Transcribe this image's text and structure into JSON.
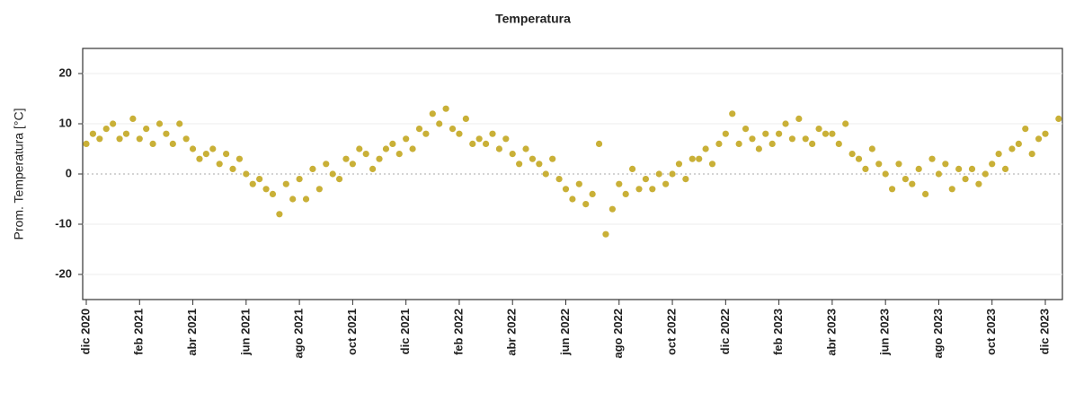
{
  "chart_data": {
    "type": "scatter",
    "title": "Temperatura",
    "y_label": "Prom. Temperatura [°C]",
    "x": [
      "2020-12",
      "2020-12",
      "2020-12",
      "2020-12",
      "2021-01",
      "2021-01",
      "2021-01",
      "2021-01",
      "2021-02",
      "2021-02",
      "2021-02",
      "2021-02",
      "2021-03",
      "2021-03",
      "2021-03",
      "2021-03",
      "2021-04",
      "2021-04",
      "2021-04",
      "2021-04",
      "2021-05",
      "2021-05",
      "2021-05",
      "2021-05",
      "2021-06",
      "2021-06",
      "2021-06",
      "2021-06",
      "2021-07",
      "2021-07",
      "2021-07",
      "2021-07",
      "2021-08",
      "2021-08",
      "2021-08",
      "2021-08",
      "2021-09",
      "2021-09",
      "2021-09",
      "2021-09",
      "2021-10",
      "2021-10",
      "2021-10",
      "2021-10",
      "2021-11",
      "2021-11",
      "2021-11",
      "2021-11",
      "2021-12",
      "2021-12",
      "2021-12",
      "2021-12",
      "2022-01",
      "2022-01",
      "2022-01",
      "2022-01",
      "2022-02",
      "2022-02",
      "2022-02",
      "2022-02",
      "2022-03",
      "2022-03",
      "2022-03",
      "2022-03",
      "2022-04",
      "2022-04",
      "2022-04",
      "2022-04",
      "2022-05",
      "2022-05",
      "2022-05",
      "2022-05",
      "2022-06",
      "2022-06",
      "2022-06",
      "2022-06",
      "2022-07",
      "2022-07",
      "2022-07",
      "2022-07",
      "2022-08",
      "2022-08",
      "2022-08",
      "2022-08",
      "2022-09",
      "2022-09",
      "2022-09",
      "2022-09",
      "2022-10",
      "2022-10",
      "2022-10",
      "2022-10",
      "2022-11",
      "2022-11",
      "2022-11",
      "2022-11",
      "2022-12",
      "2022-12",
      "2022-12",
      "2022-12",
      "2023-01",
      "2023-01",
      "2023-01",
      "2023-01",
      "2023-02",
      "2023-02",
      "2023-02",
      "2023-02",
      "2023-03",
      "2023-03",
      "2023-03",
      "2023-03",
      "2023-04",
      "2023-04",
      "2023-04",
      "2023-04",
      "2023-05",
      "2023-05",
      "2023-05",
      "2023-05",
      "2023-06",
      "2023-06",
      "2023-06",
      "2023-06",
      "2023-07",
      "2023-07",
      "2023-07",
      "2023-07",
      "2023-08",
      "2023-08",
      "2023-08",
      "2023-08",
      "2023-09",
      "2023-09",
      "2023-09",
      "2023-09",
      "2023-10",
      "2023-10",
      "2023-10",
      "2023-10",
      "2023-11",
      "2023-11",
      "2023-11",
      "2023-11",
      "2023-12",
      "2023-12"
    ],
    "series": [
      {
        "color": "#c9b037",
        "values": [
          6,
          8,
          7,
          9,
          10,
          7,
          8,
          11,
          7,
          9,
          6,
          10,
          8,
          6,
          10,
          7,
          5,
          3,
          4,
          5,
          2,
          4,
          1,
          3,
          0,
          -2,
          -1,
          -3,
          -4,
          -8,
          -2,
          -5,
          -1,
          -5,
          1,
          -3,
          2,
          0,
          -1,
          3,
          2,
          5,
          4,
          1,
          3,
          5,
          6,
          4,
          7,
          5,
          9,
          8,
          12,
          10,
          13,
          9,
          8,
          11,
          6,
          7,
          6,
          8,
          5,
          7,
          4,
          2,
          5,
          3,
          2,
          0,
          3,
          -1,
          -3,
          -5,
          -2,
          -6,
          -4,
          6,
          -12,
          -7,
          -2,
          -4,
          1,
          -3,
          -1,
          -3,
          0,
          -2,
          0,
          2,
          -1,
          3,
          3,
          5,
          2,
          6,
          8,
          12,
          6,
          9,
          7,
          5,
          8,
          6,
          8,
          10,
          7,
          11,
          7,
          6,
          9,
          8,
          8,
          6,
          10,
          4,
          3,
          1,
          5,
          2,
          0,
          -3,
          2,
          -1,
          -2,
          1,
          -4,
          3,
          0,
          2,
          -3,
          1,
          -1,
          1,
          -2,
          0,
          2,
          4,
          1,
          5,
          6,
          9,
          4,
          7,
          8,
          11
        ]
      }
    ],
    "xlim": [
      "2020-12",
      "2023-12"
    ],
    "xticks": [
      {
        "value": "2020-12",
        "label": "dic 2020"
      },
      {
        "value": "2021-02",
        "label": "feb 2021"
      },
      {
        "value": "2021-04",
        "label": "abr 2021"
      },
      {
        "value": "2021-06",
        "label": "jun 2021"
      },
      {
        "value": "2021-08",
        "label": "ago 2021"
      },
      {
        "value": "2021-10",
        "label": "oct 2021"
      },
      {
        "value": "2021-12",
        "label": "dic 2021"
      },
      {
        "value": "2022-02",
        "label": "feb 2022"
      },
      {
        "value": "2022-04",
        "label": "abr 2022"
      },
      {
        "value": "2022-06",
        "label": "jun 2022"
      },
      {
        "value": "2022-08",
        "label": "ago 2022"
      },
      {
        "value": "2022-10",
        "label": "oct 2022"
      },
      {
        "value": "2022-12",
        "label": "dic 2022"
      },
      {
        "value": "2023-02",
        "label": "feb 2023"
      },
      {
        "value": "2023-04",
        "label": "abr 2023"
      },
      {
        "value": "2023-06",
        "label": "jun 2023"
      },
      {
        "value": "2023-08",
        "label": "ago 2023"
      },
      {
        "value": "2023-10",
        "label": "oct 2023"
      },
      {
        "value": "2023-12",
        "label": "dic 2023"
      }
    ],
    "ylim": [
      -25,
      25
    ],
    "yticks": [
      -20,
      -10,
      0,
      10,
      20
    ],
    "grid": true
  }
}
